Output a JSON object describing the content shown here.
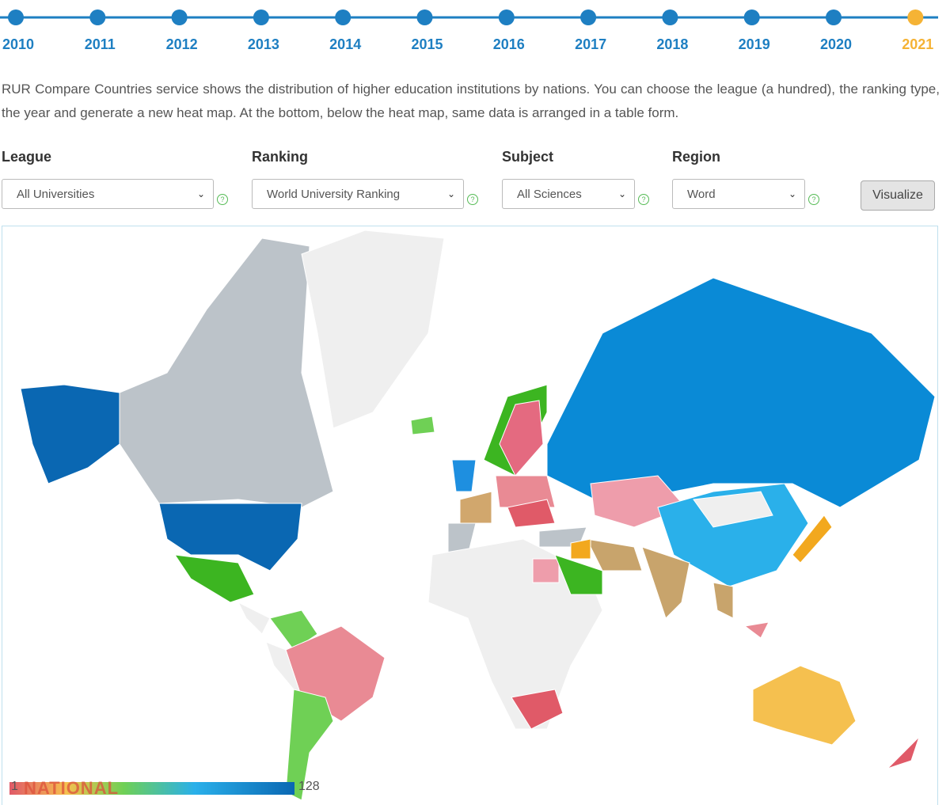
{
  "timeline": {
    "years": [
      "2010",
      "2011",
      "2012",
      "2013",
      "2014",
      "2015",
      "2016",
      "2017",
      "2018",
      "2019",
      "2020",
      "2021"
    ],
    "active": 11
  },
  "description": "RUR Compare Countries service shows the distribution of higher education institutions by nations. You can choose the league (a hundred), the ranking type, the year and generate a new heat map. At the bottom, below the heat map, same data is arranged in a table form.",
  "filters": [
    {
      "label": "League",
      "value": "All Universities"
    },
    {
      "label": "Ranking",
      "value": "World University Ranking"
    },
    {
      "label": "Subject",
      "value": "All Sciences"
    },
    {
      "label": "Region",
      "value": "Word"
    }
  ],
  "button": "Visualize",
  "legend": {
    "min": "1",
    "max": "128"
  },
  "watermark": "NATIONAL"
}
